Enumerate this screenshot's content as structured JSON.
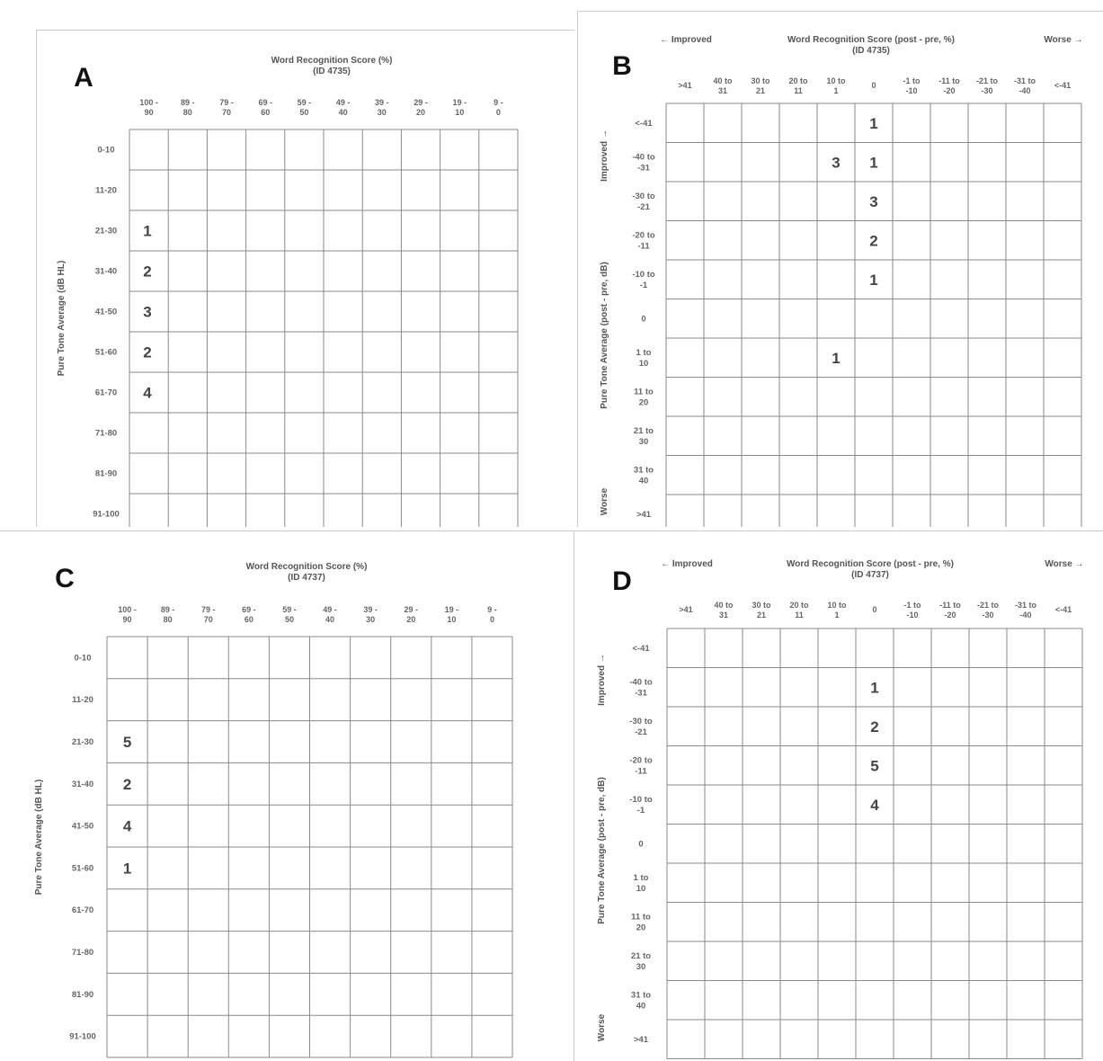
{
  "chart_data": [
    {
      "type": "table",
      "panel_label": "A",
      "title": "Word Recognition Score (%)",
      "subtitle": "(ID 4735)",
      "xlabel": "",
      "ylabel": "Pure Tone Average (dB HL)",
      "improved_label": "",
      "worse_label": "",
      "y_improved_label": "",
      "y_worse_label": "",
      "columns": [
        [
          "100 -",
          "90"
        ],
        [
          "89 -",
          "80"
        ],
        [
          "79 -",
          "70"
        ],
        [
          "69 -",
          "60"
        ],
        [
          "59 -",
          "50"
        ],
        [
          "49 -",
          "40"
        ],
        [
          "39 -",
          "30"
        ],
        [
          "29 -",
          "20"
        ],
        [
          "19 -",
          "10"
        ],
        [
          "9 -",
          "0"
        ]
      ],
      "rows": [
        [
          "0-10"
        ],
        [
          "11-20"
        ],
        [
          "21-30"
        ],
        [
          "31-40"
        ],
        [
          "41-50"
        ],
        [
          "51-60"
        ],
        [
          "61-70"
        ],
        [
          "71-80"
        ],
        [
          "81-90"
        ],
        [
          "91-100"
        ]
      ],
      "cells": [
        {
          "row": 2,
          "col": 0,
          "value": 1
        },
        {
          "row": 3,
          "col": 0,
          "value": 2
        },
        {
          "row": 4,
          "col": 0,
          "value": 3
        },
        {
          "row": 5,
          "col": 0,
          "value": 2
        },
        {
          "row": 6,
          "col": 0,
          "value": 4
        }
      ]
    },
    {
      "type": "table",
      "panel_label": "B",
      "title": "Word Recognition Score (post - pre, %)",
      "subtitle": "(ID 4735)",
      "xlabel": "",
      "ylabel": "Pure Tone Average (post - pre, dB)",
      "improved_label": "← Improved",
      "worse_label": "Worse →",
      "y_improved_label": "Improved →",
      "y_worse_label": "Worse",
      "columns": [
        [
          ">41"
        ],
        [
          "40 to",
          "31"
        ],
        [
          "30 to",
          "21"
        ],
        [
          "20 to",
          "11"
        ],
        [
          "10 to",
          "1"
        ],
        [
          "0"
        ],
        [
          "-1 to",
          "-10"
        ],
        [
          "-11 to",
          "-20"
        ],
        [
          "-21 to",
          "-30"
        ],
        [
          "-31 to",
          "-40"
        ],
        [
          "<-41"
        ]
      ],
      "rows": [
        [
          "<-41"
        ],
        [
          "-40 to",
          "-31"
        ],
        [
          "-30 to",
          "-21"
        ],
        [
          "-20 to",
          "-11"
        ],
        [
          "-10 to",
          "-1"
        ],
        [
          "0"
        ],
        [
          "1 to",
          "10"
        ],
        [
          "11 to",
          "20"
        ],
        [
          "21 to",
          "30"
        ],
        [
          "31 to",
          "40"
        ],
        [
          ">41"
        ]
      ],
      "cells": [
        {
          "row": 0,
          "col": 5,
          "value": 1
        },
        {
          "row": 1,
          "col": 4,
          "value": 3
        },
        {
          "row": 1,
          "col": 5,
          "value": 1
        },
        {
          "row": 2,
          "col": 5,
          "value": 3
        },
        {
          "row": 3,
          "col": 5,
          "value": 2
        },
        {
          "row": 4,
          "col": 5,
          "value": 1
        },
        {
          "row": 6,
          "col": 4,
          "value": 1
        }
      ]
    },
    {
      "type": "table",
      "panel_label": "C",
      "title": "Word Recognition Score (%)",
      "subtitle": "(ID 4737)",
      "xlabel": "",
      "ylabel": "Pure Tone Average (dB HL)",
      "improved_label": "",
      "worse_label": "",
      "y_improved_label": "",
      "y_worse_label": "",
      "columns": [
        [
          "100 -",
          "90"
        ],
        [
          "89 -",
          "80"
        ],
        [
          "79 -",
          "70"
        ],
        [
          "69 -",
          "60"
        ],
        [
          "59 -",
          "50"
        ],
        [
          "49 -",
          "40"
        ],
        [
          "39 -",
          "30"
        ],
        [
          "29 -",
          "20"
        ],
        [
          "19 -",
          "10"
        ],
        [
          "9 -",
          "0"
        ]
      ],
      "rows": [
        [
          "0-10"
        ],
        [
          "11-20"
        ],
        [
          "21-30"
        ],
        [
          "31-40"
        ],
        [
          "41-50"
        ],
        [
          "51-60"
        ],
        [
          "61-70"
        ],
        [
          "71-80"
        ],
        [
          "81-90"
        ],
        [
          "91-100"
        ]
      ],
      "cells": [
        {
          "row": 2,
          "col": 0,
          "value": 5
        },
        {
          "row": 3,
          "col": 0,
          "value": 2
        },
        {
          "row": 4,
          "col": 0,
          "value": 4
        },
        {
          "row": 5,
          "col": 0,
          "value": 1
        }
      ]
    },
    {
      "type": "table",
      "panel_label": "D",
      "title": "Word Recognition Score (post - pre, %)",
      "subtitle": "(ID 4737)",
      "xlabel": "",
      "ylabel": "Pure Tone Average (post - pre, dB)",
      "improved_label": "← Improved",
      "worse_label": "Worse →",
      "y_improved_label": "Improved →",
      "y_worse_label": "Worse",
      "columns": [
        [
          ">41"
        ],
        [
          "40 to",
          "31"
        ],
        [
          "30 to",
          "21"
        ],
        [
          "20 to",
          "11"
        ],
        [
          "10 to",
          "1"
        ],
        [
          "0"
        ],
        [
          "-1 to",
          "-10"
        ],
        [
          "-11 to",
          "-20"
        ],
        [
          "-21 to",
          "-30"
        ],
        [
          "-31 to",
          "-40"
        ],
        [
          "<-41"
        ]
      ],
      "rows": [
        [
          "<-41"
        ],
        [
          "-40 to",
          "-31"
        ],
        [
          "-30 to",
          "-21"
        ],
        [
          "-20 to",
          "-11"
        ],
        [
          "-10 to",
          "-1"
        ],
        [
          "0"
        ],
        [
          "1 to",
          "10"
        ],
        [
          "11 to",
          "20"
        ],
        [
          "21 to",
          "30"
        ],
        [
          "31 to",
          "40"
        ],
        [
          ">41"
        ]
      ],
      "cells": [
        {
          "row": 1,
          "col": 5,
          "value": 1
        },
        {
          "row": 2,
          "col": 5,
          "value": 2
        },
        {
          "row": 3,
          "col": 5,
          "value": 5
        },
        {
          "row": 4,
          "col": 5,
          "value": 4
        }
      ]
    }
  ]
}
